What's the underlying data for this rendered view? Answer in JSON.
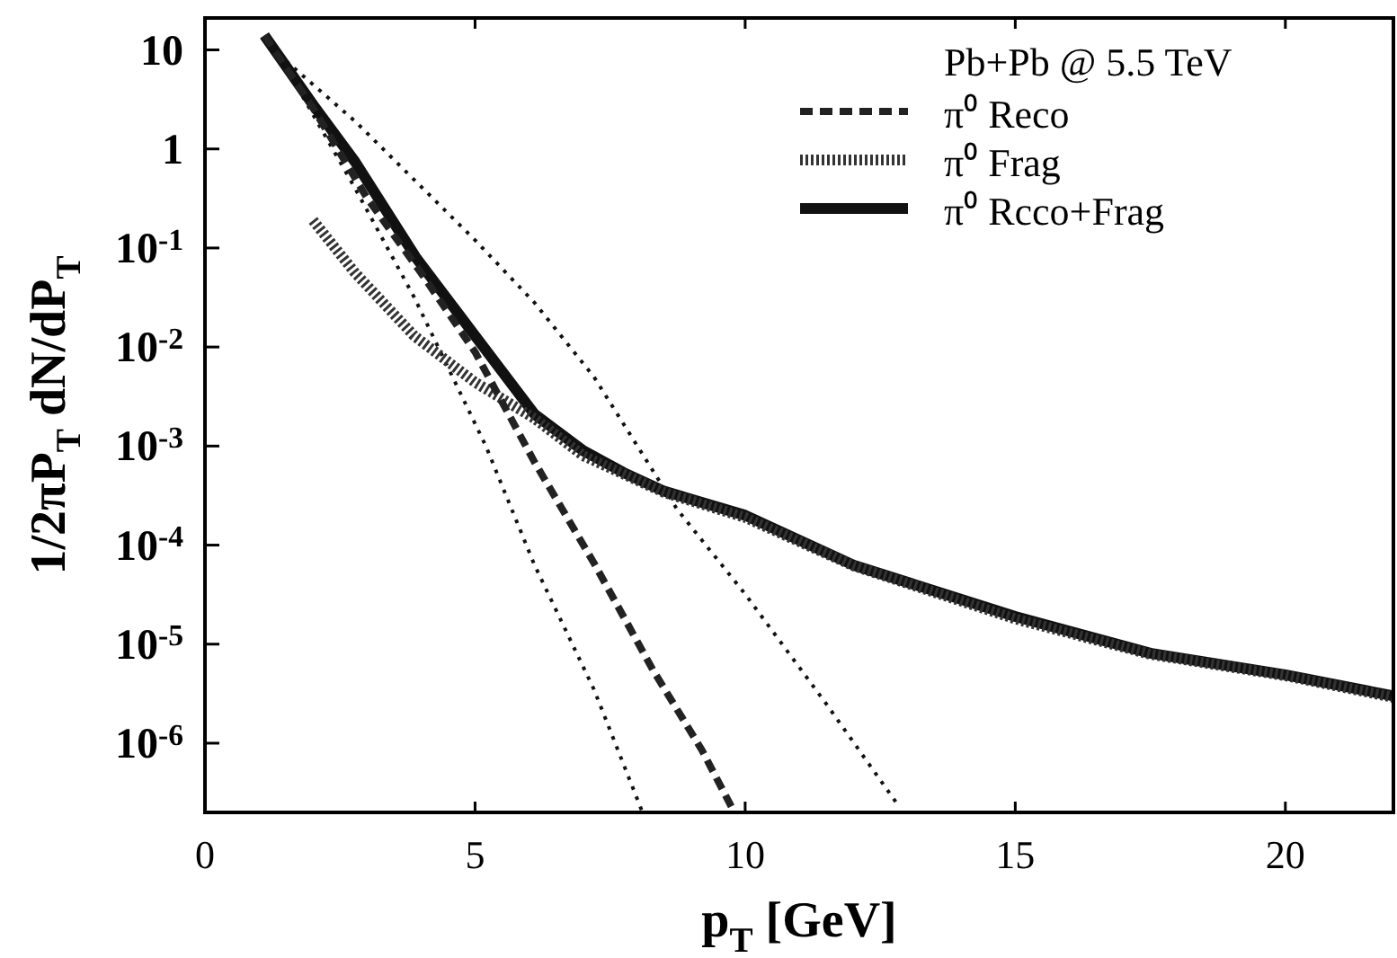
{
  "chart_data": {
    "type": "line",
    "xlabel": "p$_{T}$ [GeV]",
    "ylabel": "1/2πP$_{T}$ dN/dP$_{T}$",
    "legend_title": "Pb+Pb @ 5.5 TeV",
    "legend": "top right",
    "log": "y",
    "grid": false,
    "xlim": [
      0,
      22
    ],
    "xticks": [
      0,
      5,
      10,
      15,
      20
    ],
    "ylim": [
      2e-07,
      21
    ],
    "yticks": [
      10,
      1,
      {
        "value": 0.1,
        "label": "10$^{-1}$"
      },
      {
        "value": 0.01,
        "label": "10$^{-2}$"
      },
      {
        "value": 0.001,
        "label": "10$^{-3}$"
      },
      {
        "value": 0.0001,
        "label": "10$^{-4}$"
      },
      {
        "value": 1e-05,
        "label": "10$^{-5}$"
      },
      {
        "value": 1e-06,
        "label": "10$^{-6}$"
      }
    ],
    "series": [
      {
        "name": "π⁰ Reco",
        "color": "#222222",
        "line_style": "dashed",
        "x": [
          1.1,
          2,
          3,
          4,
          5,
          6.1,
          7.2,
          8.3,
          9.2,
          9.8
        ],
        "values": [
          14,
          2.6,
          0.32,
          0.056,
          0.0089,
          0.00069,
          6.6e-05,
          5.4e-06,
          8.5e-07,
          2e-07
        ]
      },
      {
        "name": "π⁰ Frag",
        "color": "#333333",
        "line_style": "dotted",
        "x": [
          2,
          2.78,
          3.87,
          5,
          6.1,
          7,
          8.5,
          10,
          12,
          15,
          17.5,
          20,
          22
        ],
        "values": [
          0.19,
          0.056,
          0.013,
          0.0044,
          0.0019,
          0.0008,
          0.00034,
          0.00019,
          6.2e-05,
          1.8e-05,
          7.9e-06,
          4.8e-06,
          2.9e-06
        ]
      },
      {
        "name": "π⁰ Rcco+Frag",
        "color": "#111111",
        "line_style": "solid",
        "x": [
          1.1,
          2,
          2.78,
          3.9,
          5,
          6.1,
          7,
          7.75,
          8.5,
          10,
          12,
          15,
          17.5,
          20,
          22
        ],
        "values": [
          14,
          2.8,
          0.74,
          0.081,
          0.013,
          0.0021,
          0.0009,
          0.00054,
          0.00035,
          0.0002,
          6.3e-05,
          1.9e-05,
          8.1e-06,
          4.9e-06,
          3e-06
        ]
      },
      {
        "color": "#111111",
        "line_style": "dotted",
        "x": [
          1.35,
          2.78,
          3.87,
          5,
          6.1,
          7.2,
          8.74,
          10,
          11.5,
          12.8
        ],
        "values": [
          9.1,
          1.9,
          0.49,
          0.12,
          0.028,
          0.005,
          0.00023,
          3.2e-05,
          2.5e-06,
          2.5e-07
        ]
      },
      {
        "color": "#111111",
        "line_style": "dotted",
        "x": [
          1.3,
          1.68,
          2.78,
          3.87,
          5.2,
          6.1,
          7.2,
          8.1
        ],
        "values": [
          10,
          4.5,
          0.4,
          0.032,
          0.001,
          6.3e-05,
          3.5e-06,
          2e-07
        ]
      }
    ]
  }
}
